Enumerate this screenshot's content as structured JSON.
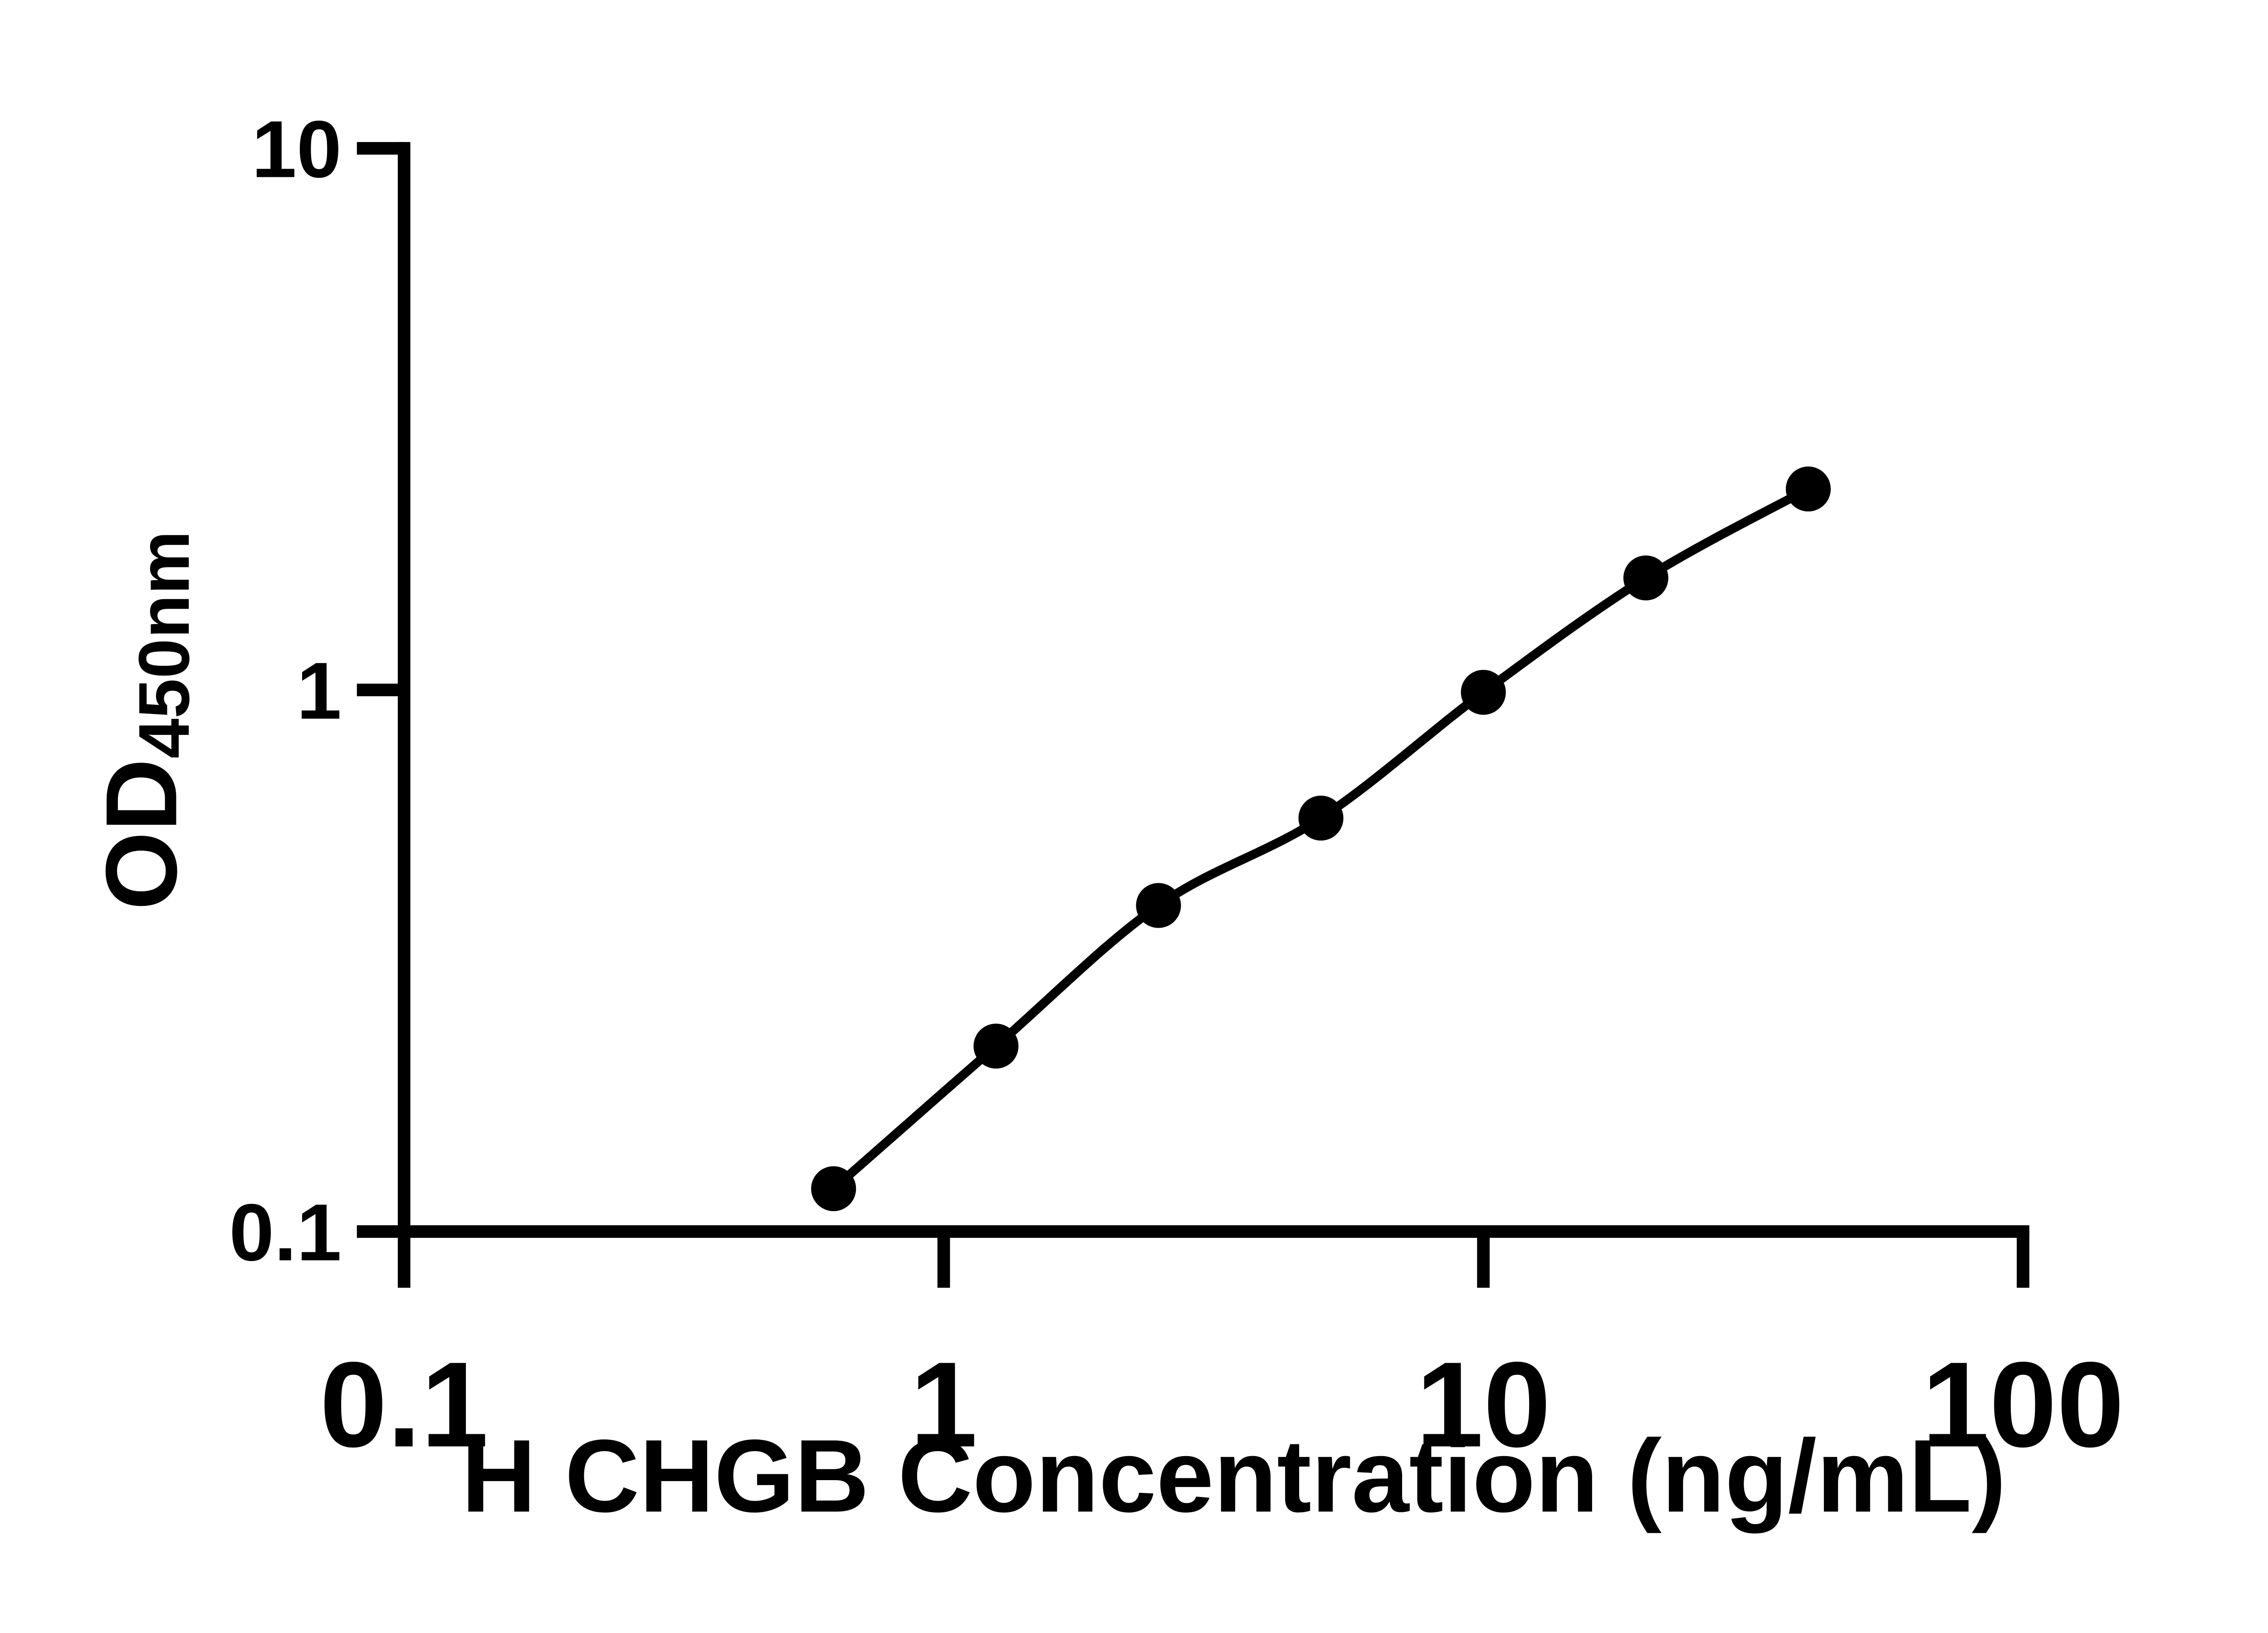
{
  "figure": {
    "background_color": "#ffffff",
    "ink_color": "#000000"
  },
  "chart_data": {
    "type": "scatter",
    "title": "",
    "xlabel": "H CHGB Concentration (ng/mL)",
    "ylabel": "OD",
    "ylabel_subscript": "450nm",
    "x_scale": "log10",
    "y_scale": "log10",
    "xlim": [
      0.1,
      100
    ],
    "ylim": [
      0.1,
      10
    ],
    "x_ticks": [
      0.1,
      1,
      10,
      100
    ],
    "x_tick_labels": [
      "0.1",
      "1",
      "10",
      "100"
    ],
    "y_ticks": [
      0.1,
      1,
      10
    ],
    "y_tick_labels": [
      "0.1",
      "1",
      "10"
    ],
    "grid": false,
    "legend": null,
    "marker_style": "filled-circle",
    "line_style": "smooth-fitted-curve",
    "x": [
      0.625,
      1.25,
      2.5,
      5,
      10,
      20,
      40
    ],
    "y": [
      0.12,
      0.22,
      0.4,
      0.58,
      0.99,
      1.61,
      2.35
    ]
  }
}
